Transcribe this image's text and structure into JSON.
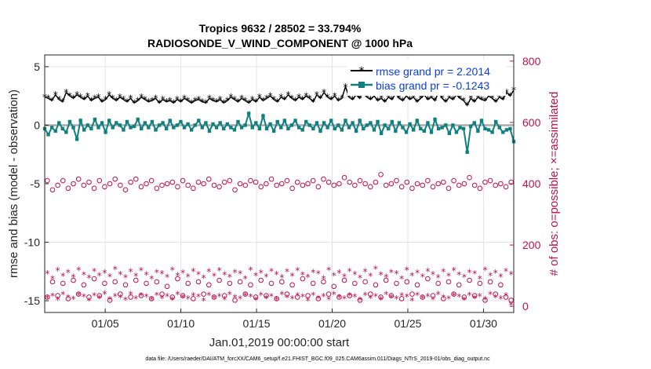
{
  "chart_data": {
    "type": "line",
    "title": "Tropics 9632 / 28502 = 33.794%",
    "subtitle": "RADIOSONDE_V_WIND_COMPONENT @ 1000 hPa",
    "xlabel": "Jan.01,2019 00:00:00 start",
    "ylabel": "rmse and bias (model - observation)",
    "y2label": "# of obs: o=possible; ×=assimilated",
    "x_ticks": [
      "01/05",
      "01/10",
      "01/15",
      "01/20",
      "01/25",
      "01/30"
    ],
    "x_tick_days": [
      5,
      10,
      15,
      20,
      25,
      30
    ],
    "xlim": [
      1,
      32
    ],
    "ylim": [
      -16,
      6
    ],
    "y_ticks": [
      5,
      0,
      -5,
      -10,
      -15
    ],
    "y2lim": [
      -20,
      820
    ],
    "y2_ticks": [
      800,
      600,
      400,
      200,
      0
    ],
    "grid": true,
    "legend": [
      {
        "label": "rmse grand pr = 2.2014",
        "color": "#000000",
        "marker": "star"
      },
      {
        "label": "bias grand pr = -0.1243",
        "color": "#0f8080",
        "marker": "square"
      }
    ],
    "series": [
      {
        "name": "rmse",
        "axis": "left",
        "color": "#000000",
        "values": [
          2.4,
          2.3,
          2.1,
          2.6,
          2.2,
          2.0,
          2.8,
          2.5,
          2.3,
          2.6,
          2.4,
          2.2,
          2.5,
          2.1,
          2.3,
          2.4,
          2.0,
          2.2,
          2.6,
          2.3,
          2.1,
          2.4,
          2.2,
          2.0,
          2.3,
          1.9,
          2.1,
          2.4,
          2.2,
          2.0,
          2.1,
          2.3,
          1.9,
          2.2,
          2.0,
          2.1,
          1.9,
          2.2,
          2.0,
          2.3,
          2.1,
          1.9,
          2.1,
          2.2,
          2.0,
          1.9,
          2.3,
          2.1,
          2.0,
          2.2,
          1.9,
          2.1,
          2.4,
          2.2,
          2.0,
          2.3,
          2.1,
          1.9,
          2.2,
          2.0,
          2.4,
          2.1,
          2.3,
          2.5,
          2.2,
          2.0,
          2.4,
          2.2,
          2.6,
          2.3,
          2.1,
          2.4,
          2.2,
          2.5,
          2.3,
          2.0,
          2.6,
          2.3,
          2.8,
          2.4,
          2.2,
          2.5,
          2.1,
          2.3,
          3.3,
          2.4,
          2.2,
          2.6,
          2.3,
          2.9,
          2.4,
          2.2,
          2.5,
          2.1,
          2.3,
          2.0,
          2.4,
          2.2,
          2.7,
          2.3,
          2.1,
          2.5,
          2.2,
          2.4,
          2.0,
          2.3,
          2.6,
          2.2,
          2.4,
          2.1,
          2.8,
          2.3,
          2.0,
          2.4,
          2.2,
          2.6,
          2.3,
          2.1,
          1.7,
          2.3,
          2.0,
          2.4,
          2.2,
          2.1,
          2.5,
          2.3,
          2.0,
          2.4,
          2.2,
          2.8,
          2.5,
          3.0
        ]
      },
      {
        "name": "bias",
        "axis": "left",
        "color": "#0f8080",
        "values": [
          -0.3,
          -0.8,
          -0.2,
          -0.5,
          0.2,
          -0.3,
          -0.6,
          0.3,
          -0.2,
          -1.2,
          0.4,
          -0.4,
          0.0,
          -0.3,
          0.5,
          -0.2,
          0.2,
          -0.6,
          0.4,
          -0.2,
          0.2,
          0.0,
          -0.4,
          0.3,
          -0.2,
          -0.1,
          0.5,
          -0.3,
          0.2,
          -0.2,
          0.3,
          -0.4,
          0.0,
          0.2,
          -0.3,
          0.4,
          -0.2,
          0.0,
          0.3,
          -0.2,
          0.1,
          -0.4,
          0.0,
          0.4,
          -0.2,
          0.2,
          -0.5,
          0.1,
          -0.2,
          0.2,
          -0.3,
          0.1,
          -0.2,
          -0.4,
          0.3,
          -0.2,
          0.0,
          1.0,
          -0.2,
          0.2,
          -0.3,
          0.8,
          -0.3,
          0.1,
          -0.5,
          0.3,
          -0.2,
          0.4,
          -0.3,
          0.0,
          0.4,
          -0.2,
          -0.4,
          0.3,
          0.0,
          -0.3,
          0.2,
          -0.5,
          0.2,
          -0.2,
          0.4,
          -0.3,
          0.0,
          -0.4,
          0.4,
          -0.2,
          0.2,
          -0.5,
          0.4,
          -0.3,
          0.0,
          0.2,
          -0.4,
          0.3,
          -0.7,
          0.0,
          -0.3,
          0.3,
          -0.5,
          0.2,
          -0.2,
          -0.6,
          0.1,
          -0.4,
          0.4,
          -0.3,
          -0.5,
          0.2,
          -0.6,
          0.5,
          -0.3,
          -0.2,
          0.0,
          -0.7,
          0.0,
          -0.6,
          -0.2,
          -0.3,
          -2.3,
          -0.1,
          0.2,
          -0.5,
          0.4,
          -0.3,
          -0.4,
          -0.6,
          0.3,
          -0.2,
          -0.6,
          -0.4,
          -0.3,
          -1.4
        ]
      },
      {
        "name": "possible (upper)",
        "axis": "right",
        "color": "#c0104f",
        "values": [
          410,
          380,
          395,
          410,
          385,
          400,
          415,
          395,
          405,
          385,
          410,
          390,
          400,
          415,
          395,
          380,
          405,
          415,
          390,
          400,
          410,
          385,
          395,
          400,
          405,
          390,
          410,
          395,
          385,
          405,
          400,
          415,
          395,
          390,
          405,
          410,
          380,
          400,
          395,
          410,
          405,
          390,
          400,
          415,
          395,
          400,
          410,
          385,
          405,
          395,
          400,
          410,
          390,
          415,
          405,
          395,
          400,
          420,
          405,
          395,
          410,
          400,
          390,
          405,
          430,
          395,
          400,
          410,
          390,
          405,
          385,
          400,
          395,
          410,
          390,
          400,
          405,
          385,
          410,
          395,
          400,
          420,
          395,
          385,
          405,
          410,
          395,
          400,
          390,
          405
        ]
      },
      {
        "name": "possible (lower)",
        "axis": "right",
        "color": "#c0104f",
        "values": [
          30,
          80,
          35,
          75,
          25,
          85,
          40,
          70,
          30,
          90,
          35,
          75,
          20,
          80,
          40,
          70,
          30,
          85,
          35,
          75,
          25,
          80,
          40,
          65,
          30,
          90,
          35,
          75,
          25,
          80,
          40,
          70,
          30,
          85,
          35,
          75,
          20,
          80,
          40,
          70,
          30,
          85,
          35,
          75,
          25,
          80,
          40,
          70,
          30,
          90,
          35,
          75,
          25,
          80,
          40,
          65,
          30,
          85,
          35,
          75,
          20,
          80,
          40,
          70,
          30,
          85,
          35,
          75,
          25,
          80,
          40,
          70,
          30,
          90,
          35,
          75,
          25,
          80,
          40,
          70,
          30,
          85,
          35,
          75,
          20,
          80,
          40,
          70,
          30,
          20
        ]
      },
      {
        "name": "assimilated (upper)",
        "axis": "right",
        "color": "#c0104f",
        "values": [
          108,
          92,
          118,
          100,
          112,
          96,
          120,
          104,
          94,
          116,
          102,
          110,
          98,
          122,
          106,
          95,
          114,
          100,
          118,
          104,
          92,
          112,
          108,
          96,
          120,
          102,
          110,
          98,
          116,
          106,
          94,
          114,
          100,
          118,
          104,
          96,
          112,
          108,
          92,
          120,
          102,
          110,
          98,
          116,
          106,
          95,
          114,
          100,
          118,
          104,
          96,
          112,
          108,
          92,
          120,
          102,
          110,
          98,
          116,
          106,
          94,
          114,
          100,
          124,
          104,
          96,
          112,
          108,
          92,
          120,
          102,
          110,
          98,
          116,
          106,
          95,
          114,
          100,
          118,
          104,
          96,
          112,
          108,
          92,
          120,
          102,
          110,
          98,
          116,
          106
        ]
      },
      {
        "name": "assimilated (lower)",
        "axis": "right",
        "color": "#c0104f",
        "values": [
          28,
          35,
          22,
          40,
          30,
          25,
          38,
          32,
          20,
          36,
          28,
          42,
          24,
          34,
          30,
          22,
          40,
          26,
          36,
          32,
          24,
          38,
          28,
          34,
          22,
          40,
          30,
          26,
          36,
          32,
          20,
          38,
          28,
          34,
          24,
          40,
          30,
          26,
          36,
          32,
          22,
          38,
          28,
          34,
          24,
          40,
          30,
          26,
          36,
          32,
          20,
          38,
          28,
          34,
          24,
          40,
          30,
          26,
          36,
          32,
          22,
          38,
          28,
          34,
          24,
          40,
          30,
          26,
          36,
          32,
          20,
          38,
          28,
          34,
          24,
          40,
          30,
          26,
          36,
          32,
          22,
          38,
          28,
          34,
          24,
          40,
          30,
          26,
          36,
          5
        ]
      }
    ]
  },
  "footer": "data file: /Users/raeder/DAI/ATM_forcXX/CAM6_setup/f.e21.FHIST_BGC.f09_025.CAM6assim.011/Diags_NTrS_2019-01/obs_diag_output.nc"
}
